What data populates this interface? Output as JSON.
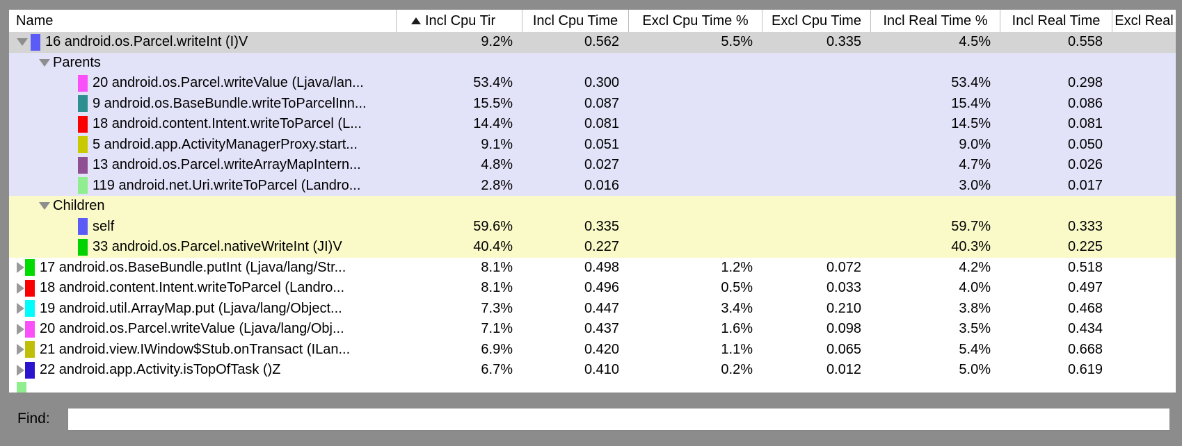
{
  "colors": {
    "frame_bg": "#8c8c8c",
    "selected_row_bg": "#d4d4d4",
    "parents_section_bg": "#e2e2f9",
    "children_section_bg": "#fafac9"
  },
  "table": {
    "columns": [
      {
        "label": "Name"
      },
      {
        "label": "Incl Cpu Tir",
        "sorted": "asc"
      },
      {
        "label": "Incl Cpu Time"
      },
      {
        "label": "Excl Cpu Time %"
      },
      {
        "label": "Excl Cpu Time"
      },
      {
        "label": "Incl Real Time %"
      },
      {
        "label": "Incl Real Time"
      },
      {
        "label": "Excl Real"
      }
    ],
    "rows": [
      {
        "kind": "method",
        "indent": 0,
        "arrow": "down",
        "color": "#5b5bf7",
        "bg": "sel",
        "name": "16 android.os.Parcel.writeInt (I)V",
        "values": [
          "9.2%",
          "0.562",
          "5.5%",
          "0.335",
          "4.5%",
          "0.558",
          ""
        ]
      },
      {
        "kind": "section",
        "arrow": "down",
        "bg": "par",
        "name": "Parents",
        "values": [
          "",
          "",
          "",
          "",
          "",
          "",
          ""
        ]
      },
      {
        "kind": "method",
        "indent": 1,
        "color": "#fa50fa",
        "bg": "par",
        "name": "20 android.os.Parcel.writeValue (Ljava/lan...",
        "values": [
          "53.4%",
          "0.300",
          "",
          "",
          "53.4%",
          "0.298",
          ""
        ]
      },
      {
        "kind": "method",
        "indent": 1,
        "color": "#2d8f8f",
        "bg": "par",
        "name": "9 android.os.BaseBundle.writeToParcelInn...",
        "values": [
          "15.5%",
          "0.087",
          "",
          "",
          "15.4%",
          "0.086",
          ""
        ]
      },
      {
        "kind": "method",
        "indent": 1,
        "color": "#fa0000",
        "bg": "par",
        "name": "18 android.content.Intent.writeToParcel (L...",
        "values": [
          "14.4%",
          "0.081",
          "",
          "",
          "14.5%",
          "0.081",
          ""
        ]
      },
      {
        "kind": "method",
        "indent": 1,
        "color": "#c9c900",
        "bg": "par",
        "name": "5 android.app.ActivityManagerProxy.start...",
        "values": [
          "9.1%",
          "0.051",
          "",
          "",
          "9.0%",
          "0.050",
          ""
        ]
      },
      {
        "kind": "method",
        "indent": 1,
        "color": "#8f4f93",
        "bg": "par",
        "name": "13 android.os.Parcel.writeArrayMapIntern...",
        "values": [
          "4.8%",
          "0.027",
          "",
          "",
          "4.7%",
          "0.026",
          ""
        ]
      },
      {
        "kind": "method",
        "indent": 1,
        "color": "#90ee90",
        "bg": "par",
        "name": "119 android.net.Uri.writeToParcel (Landro...",
        "values": [
          "2.8%",
          "0.016",
          "",
          "",
          "3.0%",
          "0.017",
          ""
        ]
      },
      {
        "kind": "section",
        "arrow": "down",
        "bg": "chi",
        "name": "Children",
        "values": [
          "",
          "",
          "",
          "",
          "",
          "",
          ""
        ]
      },
      {
        "kind": "method",
        "indent": 1,
        "color": "#5b5bf7",
        "bg": "chi",
        "name": "self",
        "values": [
          "59.6%",
          "0.335",
          "",
          "",
          "59.7%",
          "0.333",
          ""
        ]
      },
      {
        "kind": "method",
        "indent": 1,
        "color": "#00d300",
        "bg": "chi",
        "name": "33 android.os.Parcel.nativeWriteInt (JI)V",
        "values": [
          "40.4%",
          "0.227",
          "",
          "",
          "40.3%",
          "0.225",
          ""
        ]
      },
      {
        "kind": "method",
        "indent": 0,
        "arrow": "right",
        "color": "#00dc00",
        "bg": "",
        "name": "17 android.os.BaseBundle.putInt (Ljava/lang/Str...",
        "values": [
          "8.1%",
          "0.498",
          "1.2%",
          "0.072",
          "4.2%",
          "0.518",
          ""
        ]
      },
      {
        "kind": "method",
        "indent": 0,
        "arrow": "right",
        "color": "#fa0000",
        "bg": "",
        "name": "18 android.content.Intent.writeToParcel (Landro...",
        "values": [
          "8.1%",
          "0.496",
          "0.5%",
          "0.033",
          "4.0%",
          "0.497",
          ""
        ]
      },
      {
        "kind": "method",
        "indent": 0,
        "arrow": "right",
        "color": "#00fcfc",
        "bg": "",
        "name": "19 android.util.ArrayMap.put (Ljava/lang/Object...",
        "values": [
          "7.3%",
          "0.447",
          "3.4%",
          "0.210",
          "3.8%",
          "0.468",
          ""
        ]
      },
      {
        "kind": "method",
        "indent": 0,
        "arrow": "right",
        "color": "#fa50fa",
        "bg": "",
        "name": "20 android.os.Parcel.writeValue (Ljava/lang/Obj...",
        "values": [
          "7.1%",
          "0.437",
          "1.6%",
          "0.098",
          "3.5%",
          "0.434",
          ""
        ]
      },
      {
        "kind": "method",
        "indent": 0,
        "arrow": "right",
        "color": "#bfbf0a",
        "bg": "",
        "name": "21 android.view.IWindow$Stub.onTransact (ILan...",
        "values": [
          "6.9%",
          "0.420",
          "1.1%",
          "0.065",
          "5.4%",
          "0.668",
          ""
        ]
      },
      {
        "kind": "method",
        "indent": 0,
        "arrow": "right",
        "color": "#2b14ce",
        "bg": "",
        "name": "22 android.app.Activity.isTopOfTask ()Z",
        "values": [
          "6.7%",
          "0.410",
          "0.2%",
          "0.012",
          "5.0%",
          "0.619",
          ""
        ]
      },
      {
        "kind": "method",
        "indent": 0,
        "arrow": null,
        "color": "#90ee90",
        "bg": "",
        "name": "",
        "values": [
          "",
          "",
          "",
          "",
          "",
          "",
          ""
        ]
      }
    ]
  },
  "find": {
    "label": "Find:",
    "value": "",
    "placeholder": ""
  }
}
